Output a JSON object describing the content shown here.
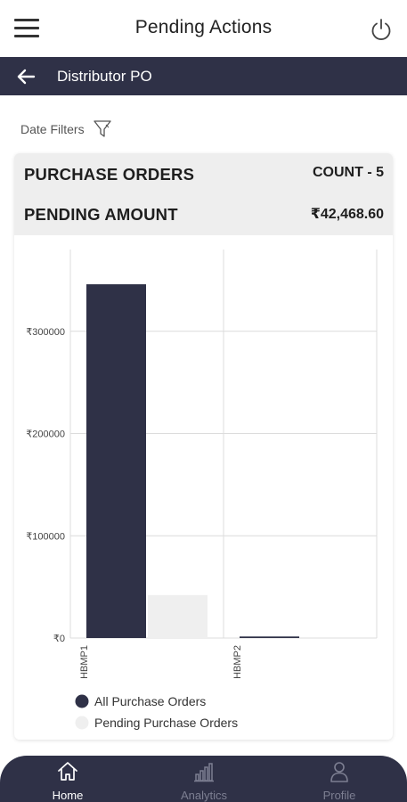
{
  "header": {
    "title": "Pending Actions",
    "menu_icon": "hamburger-menu-icon",
    "power_icon": "power-icon"
  },
  "subheader": {
    "back_icon": "back-arrow-icon",
    "title": "Distributor PO"
  },
  "filters": {
    "label": "Date Filters",
    "icon": "filter-icon"
  },
  "summary": {
    "purchase_orders_label": "PURCHASE ORDERS",
    "purchase_orders_value": "COUNT - 5",
    "pending_amount_label": "PENDING AMOUNT",
    "pending_amount_value": "₹42,468.60"
  },
  "colors": {
    "primary_dark": "#2f3147",
    "pending_bar": "#efefef",
    "summary_bg": "#eeeeee"
  },
  "chart_data": {
    "type": "bar",
    "categories": [
      "HBMP1",
      "HBMP2"
    ],
    "series": [
      {
        "name": "All Purchase Orders",
        "values": [
          346000,
          1500
        ],
        "color": "#2f3147"
      },
      {
        "name": "Pending Purchase Orders",
        "values": [
          42000,
          0
        ],
        "color": "#efefef"
      }
    ],
    "yticks": [
      "₹0",
      "₹100000",
      "₹200000",
      "₹300000"
    ],
    "ytick_values": [
      0,
      100000,
      200000,
      300000
    ],
    "ylim": [
      0,
      380000
    ],
    "grid": true,
    "legend_position": "bottom-left"
  },
  "bottom_nav": {
    "items": [
      {
        "label": "Home",
        "icon": "home-icon",
        "active": true
      },
      {
        "label": "Analytics",
        "icon": "analytics-icon",
        "active": false
      },
      {
        "label": "Profile",
        "icon": "profile-icon",
        "active": false
      }
    ]
  }
}
